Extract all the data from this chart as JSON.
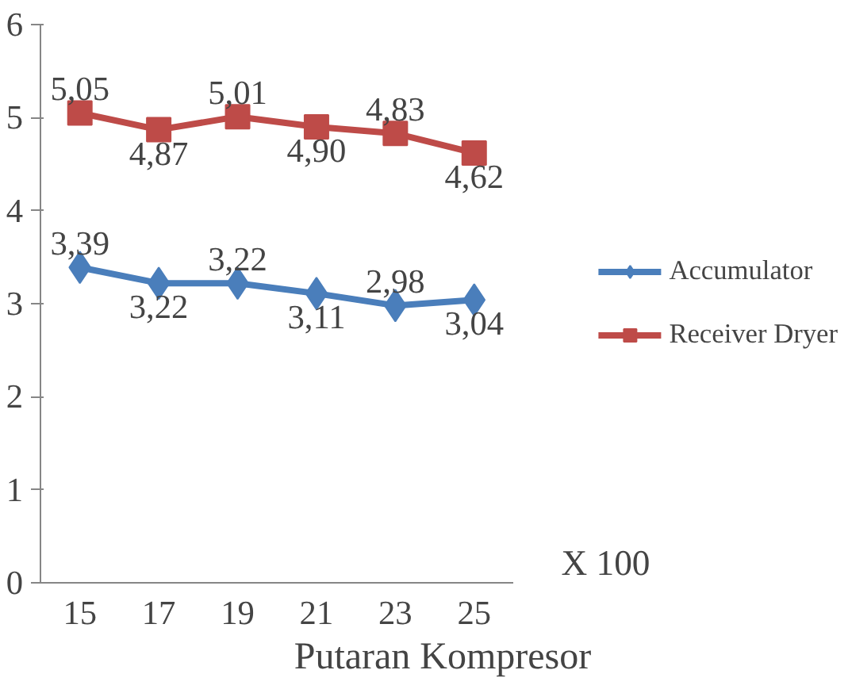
{
  "chart_data": {
    "type": "line",
    "xlabel": "Putaran Kompresor",
    "categories": [
      "15",
      "17",
      "19",
      "21",
      "23",
      "25"
    ],
    "ylim": [
      0,
      6
    ],
    "yticks": [
      0,
      1,
      2,
      3,
      4,
      5,
      6
    ],
    "grid": false,
    "legend": "right",
    "line_style": "solid",
    "annotations": [
      "X 100"
    ],
    "series": [
      {
        "name": "Accumulator",
        "color": "#4a7ebb",
        "marker": "diamond",
        "values": [
          3.39,
          3.22,
          3.22,
          3.11,
          2.98,
          3.04
        ],
        "value_labels": [
          "3,39",
          "3,22",
          "3,22",
          "3,11",
          "2,98",
          "3,04"
        ]
      },
      {
        "name": "Receiver Dryer",
        "color": "#be4b48",
        "marker": "square",
        "values": [
          5.05,
          4.87,
          5.01,
          4.9,
          4.83,
          4.62
        ],
        "value_labels": [
          "5,05",
          "4,87",
          "5,01",
          "4,90",
          "4,83",
          "4,62"
        ]
      }
    ]
  }
}
